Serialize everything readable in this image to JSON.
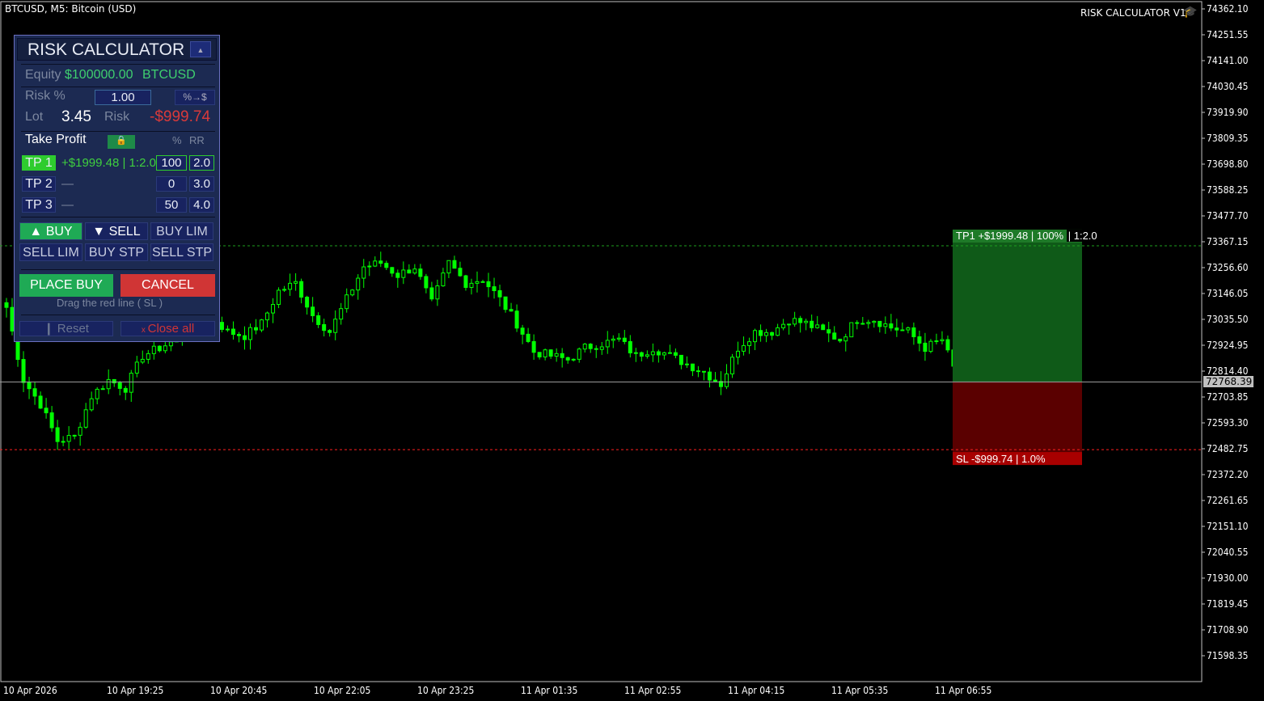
{
  "chart": {
    "symbol_title": "BTCUSD, M5:  Bitcoin (USD)",
    "indicator_label": "RISK CALCULATOR V1",
    "indicator_icon": "graduation-cap-icon",
    "price_ticks": [
      "74362.10",
      "74251.55",
      "74141.00",
      "74030.45",
      "73919.90",
      "73809.35",
      "73698.80",
      "73588.25",
      "73477.70",
      "73367.15",
      "73256.60",
      "73146.05",
      "73035.50",
      "72924.95",
      "72814.40",
      "72703.85",
      "72593.30",
      "72482.75",
      "72372.20",
      "72261.65",
      "72151.10",
      "72040.55",
      "71930.00",
      "71819.45",
      "71708.90",
      "71598.35"
    ],
    "current_price": "72768.39",
    "time_ticks": [
      "10 Apr 2026",
      "10 Apr 19:25",
      "10 Apr 20:45",
      "10 Apr 22:05",
      "10 Apr 23:25",
      "11 Apr 01:35",
      "11 Apr 02:55",
      "11 Apr 04:15",
      "11 Apr 05:35",
      "11 Apr 06:55"
    ],
    "closes": [
      73087,
      72776,
      72673,
      72517,
      72534,
      72707,
      72776,
      72742,
      72880,
      72914,
      72949,
      73087,
      73053,
      72983,
      72966,
      73018,
      73156,
      73191,
      73053,
      72983,
      73122,
      73260,
      73277,
      73225,
      73260,
      73104,
      73277,
      73191,
      73208,
      73122,
      73018,
      72897,
      72880,
      72863,
      72914,
      72932,
      72949,
      72880,
      72914,
      72880,
      72845,
      72811,
      72759,
      72914,
      72983,
      72983,
      73035,
      73018,
      72983,
      72949,
      73035,
      73035,
      73001,
      72983,
      72914,
      72949,
      72768
    ],
    "tp_price": 73350,
    "sl_price": 72479,
    "tp_label": "TP1  +$1999.48 | 100%",
    "tp_rr": "| 1:2.0",
    "sl_label": "SL  -$999.74 | 1.0%",
    "colors": {
      "bull": "#00ff00",
      "tp_zone": "#0f5a18",
      "sl_zone": "#5a0000",
      "sl_line": "#ff2020",
      "tp_line": "#1ea01e"
    }
  },
  "panel": {
    "title": "RISK CALCULATOR",
    "collapse": "▲",
    "equity_label": "Equity",
    "equity_value": "$100000.00",
    "symbol": "BTCUSD",
    "risk_pct_label": "Risk %",
    "risk_pct_value": "1.00",
    "convert_button": "%→$",
    "lot_label": "Lot",
    "lot_value": "3.45",
    "risk_label": "Risk",
    "risk_value": "-$999.74",
    "tp_header": "Take Profit",
    "pct_header": "%",
    "rr_header": "RR",
    "tps": [
      {
        "label": "TP 1",
        "info": "+$1999.48 | 1:2.0",
        "pct": "100",
        "rr": "2.0"
      },
      {
        "label": "TP 2",
        "info": "—",
        "pct": "0",
        "rr": "3.0"
      },
      {
        "label": "TP 3",
        "info": "—",
        "pct": "50",
        "rr": "4.0"
      }
    ],
    "orders": [
      "▲  BUY",
      "▼  SELL",
      "BUY LIM",
      "SELL LIM",
      "BUY STP",
      "SELL STP"
    ],
    "place": "PLACE  BUY",
    "cancel": "CANCEL",
    "hint": "Drag the red line  ( SL )",
    "reset": "❙ Reset",
    "close_all": "Close all"
  }
}
